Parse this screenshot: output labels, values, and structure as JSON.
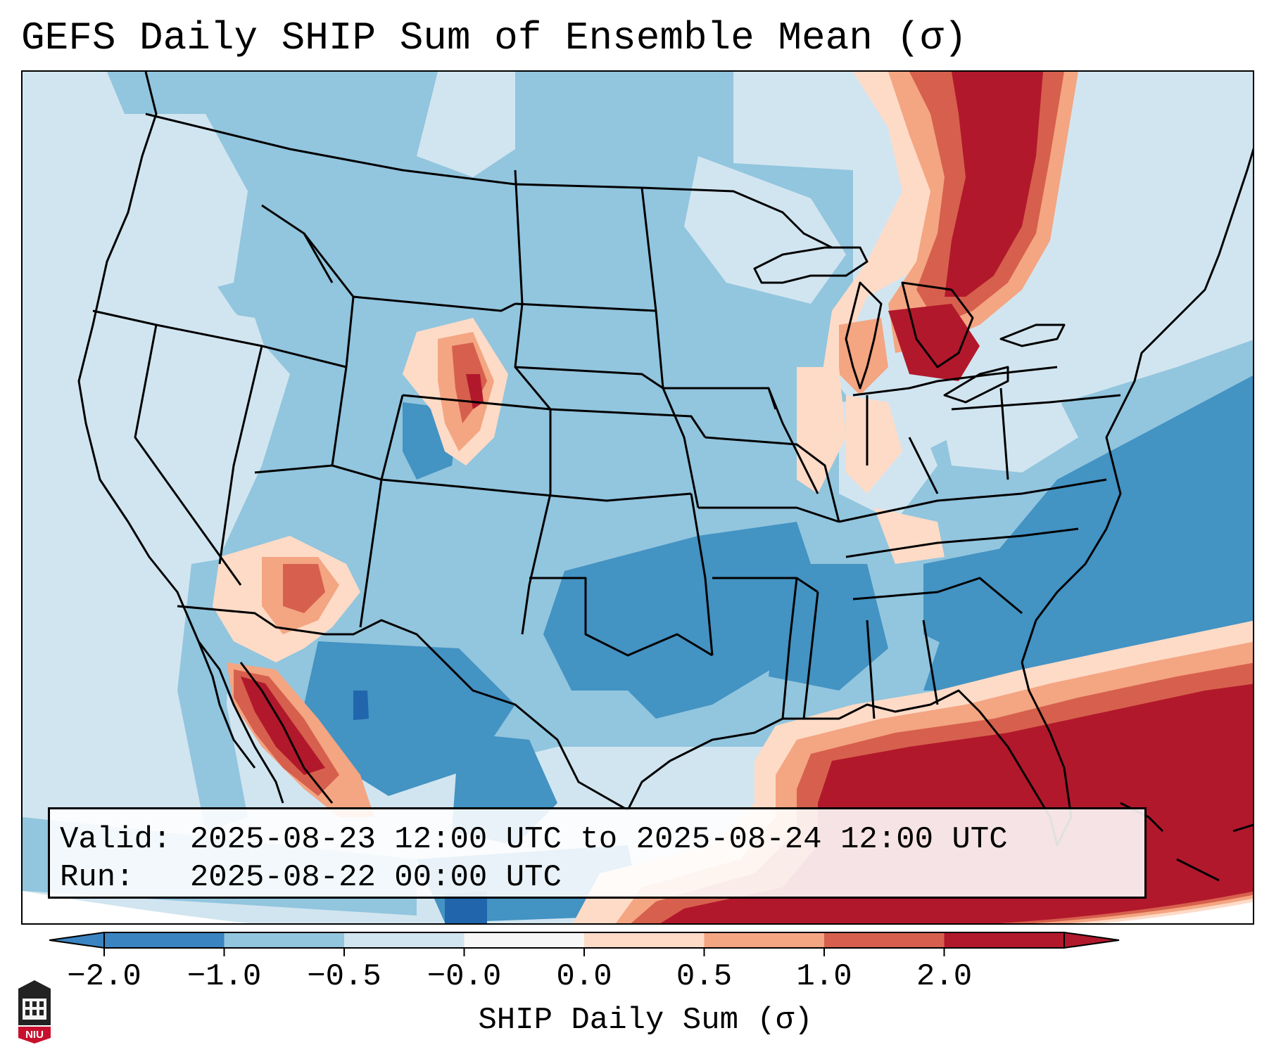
{
  "title": "GEFS Daily SHIP Sum of Ensemble Mean (σ)",
  "info_box": {
    "valid_line": "Valid: 2025-08-23 12:00 UTC to 2025-08-24 12:00 UTC",
    "run_line": "Run:   2025-08-22 00:00 UTC"
  },
  "colorbar": {
    "label": "SHIP Daily Sum (σ)",
    "ticks": [
      "−2.0",
      "−1.0",
      "−0.5",
      "−0.0",
      "0.0",
      "0.5",
      "1.0",
      "2.0"
    ],
    "colors": [
      "#3b84c2",
      "#92c5de",
      "#d1e5f0",
      "#f7f7f7",
      "#fddbc7",
      "#f4a582",
      "#d6604d",
      "#b2182b"
    ],
    "extend": "both"
  },
  "logo": {
    "text": "NIU"
  },
  "map": {
    "projection": "Lambert Conformal, CONUS",
    "colors": {
      "ocean_neutral": "#d1e5f0",
      "light_blue": "#92c5de",
      "mid_blue": "#4393c3",
      "dark_blue": "#2166ac",
      "light_red": "#fddbc7",
      "salmon": "#f4a582",
      "red": "#d6604d",
      "dark_red": "#b2182b",
      "border": "#000000"
    }
  }
}
